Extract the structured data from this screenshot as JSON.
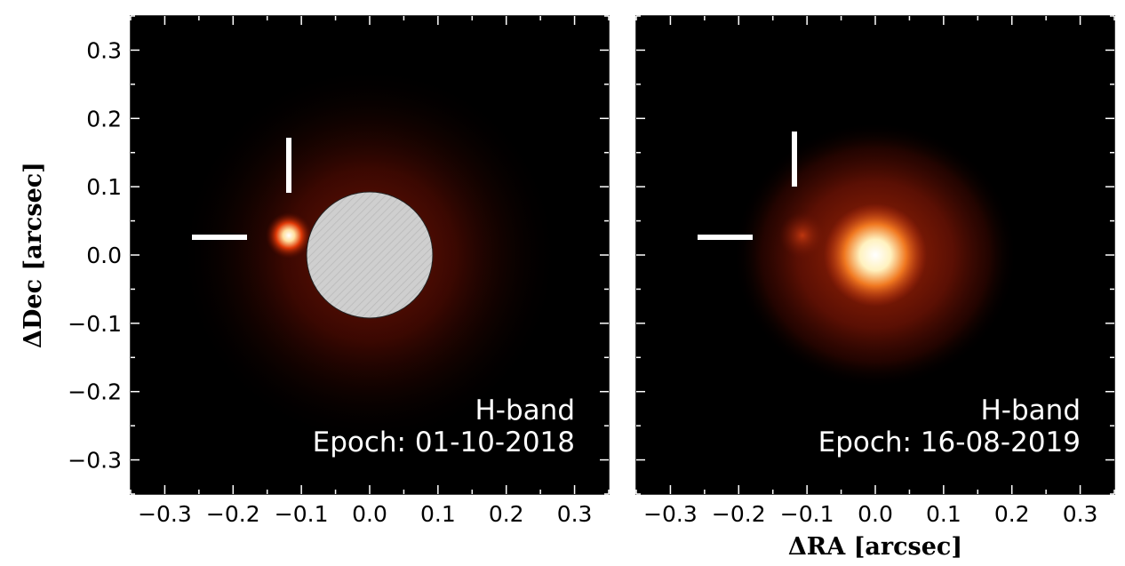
{
  "axes": {
    "ylabel": "ΔDec [arcsec]",
    "xlabel": "ΔRA [arcsec]",
    "x_ticks": [
      -0.3,
      -0.2,
      -0.1,
      0.0,
      0.1,
      0.2,
      0.3
    ],
    "y_ticks": [
      0.3,
      0.2,
      0.1,
      0.0,
      -0.1,
      -0.2,
      -0.3
    ],
    "x_tick_labels": [
      "−0.3",
      "−0.2",
      "−0.1",
      "0.0",
      "0.1",
      "0.2",
      "0.3"
    ],
    "y_tick_labels": [
      "0.3",
      "0.2",
      "0.1",
      "0.0",
      "−0.1",
      "−0.2",
      "−0.3"
    ],
    "range": [
      -0.35,
      0.35
    ]
  },
  "panels": [
    {
      "band": "H-band",
      "epoch": "Epoch: 01-10-2018"
    },
    {
      "band": "H-band",
      "epoch": "Epoch: 16-08-2019"
    }
  ],
  "colors": {
    "background": "#000000",
    "glow": "#8a1a05",
    "core": "#ffffff",
    "mask": "#cfcfcf"
  }
}
